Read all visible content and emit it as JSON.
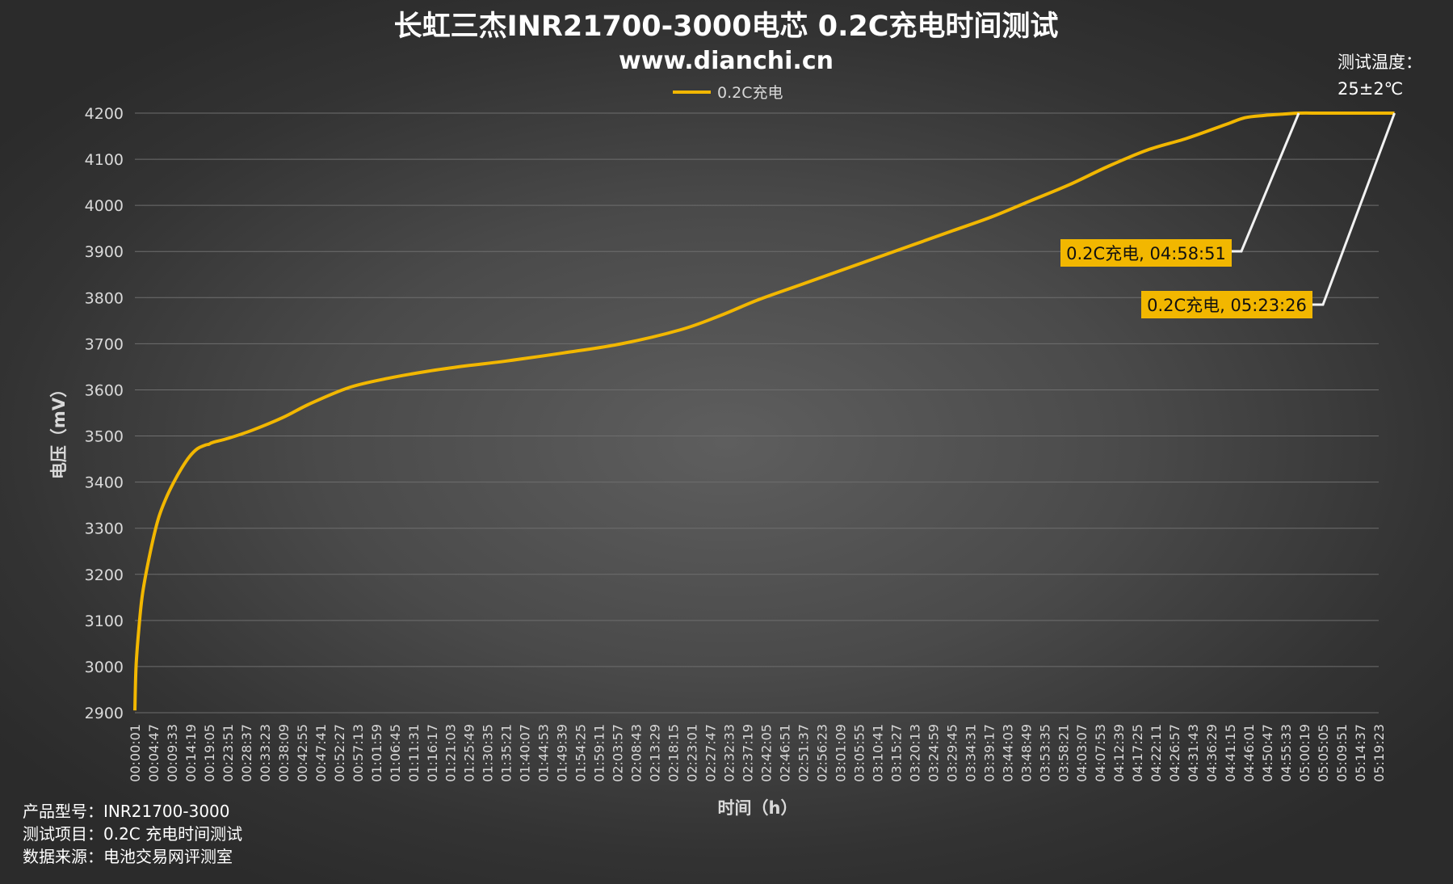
{
  "chart_data": {
    "type": "line",
    "title": "长虹三杰INR21700-3000电芯 0.2C充电时间测试",
    "subtitle": "www.dianchi.cn",
    "xlabel": "时间（h）",
    "ylabel": "电压（mV）",
    "ylim": [
      2900,
      4200
    ],
    "yticks": [
      2900,
      3000,
      3100,
      3200,
      3300,
      3400,
      3500,
      3600,
      3700,
      3800,
      3900,
      4000,
      4100,
      4200
    ],
    "grid": true,
    "legend_position": "top-center",
    "x_tick_labels": [
      "00:00:01",
      "00:04:47",
      "00:09:33",
      "00:14:19",
      "00:19:05",
      "00:23:51",
      "00:28:37",
      "00:33:23",
      "00:38:09",
      "00:42:55",
      "00:47:41",
      "00:52:27",
      "00:57:13",
      "01:01:59",
      "01:06:45",
      "01:11:31",
      "01:16:17",
      "01:21:03",
      "01:25:49",
      "01:30:35",
      "01:35:21",
      "01:40:07",
      "01:44:53",
      "01:49:39",
      "01:54:25",
      "01:59:11",
      "02:03:57",
      "02:08:43",
      "02:13:29",
      "02:18:15",
      "02:23:01",
      "02:27:47",
      "02:32:33",
      "02:37:19",
      "02:42:05",
      "02:46:51",
      "02:51:37",
      "02:56:23",
      "03:01:09",
      "03:05:55",
      "03:10:41",
      "03:15:27",
      "03:20:13",
      "03:24:59",
      "03:29:45",
      "03:34:31",
      "03:39:17",
      "03:44:03",
      "03:48:49",
      "03:53:35",
      "03:58:21",
      "04:03:07",
      "04:07:53",
      "04:12:39",
      "04:17:25",
      "04:22:11",
      "04:26:57",
      "04:31:43",
      "04:36:29",
      "04:41:15",
      "04:46:01",
      "04:50:47",
      "04:55:33",
      "05:00:19",
      "05:05:05",
      "05:09:51",
      "05:14:37",
      "05:19:23"
    ],
    "series": [
      {
        "name": "0.2C充电",
        "color": "#f2b700",
        "x_minutes": [
          0,
          0.3,
          1,
          2,
          4,
          6,
          8,
          10,
          12,
          14,
          16,
          18,
          19,
          20,
          24,
          30,
          38,
          45,
          55,
          65,
          75,
          85,
          95,
          110,
          125,
          140,
          150,
          160,
          170,
          180,
          190,
          200,
          210,
          220,
          230,
          240,
          250,
          260,
          270,
          280,
          285,
          290,
          295,
          298.85,
          305,
          315,
          323.43
        ],
        "y_mv": [
          2905,
          3000,
          3080,
          3160,
          3250,
          3320,
          3365,
          3400,
          3430,
          3455,
          3472,
          3480,
          3482,
          3486,
          3495,
          3512,
          3540,
          3570,
          3605,
          3625,
          3640,
          3652,
          3662,
          3680,
          3700,
          3730,
          3760,
          3795,
          3825,
          3855,
          3885,
          3915,
          3945,
          3975,
          4010,
          4045,
          4085,
          4120,
          4145,
          4175,
          4190,
          4195,
          4198,
          4200,
          4200,
          4200,
          4200
        ]
      }
    ],
    "annotations": [
      {
        "label": "0.2C充电, 04:58:51",
        "x_minutes": 298.85,
        "y_mv": 4200
      },
      {
        "label": "0.2C充电, 05:23:26",
        "x_minutes": 323.43,
        "y_mv": 4200
      }
    ]
  },
  "notes": {
    "temp_label": "测试温度：",
    "temp_value": "25±2℃"
  },
  "footer": {
    "model": "产品型号：INR21700-3000",
    "item": "测试项目：0.2C 充电时间测试",
    "source": "数据来源：电池交易网评测室"
  }
}
